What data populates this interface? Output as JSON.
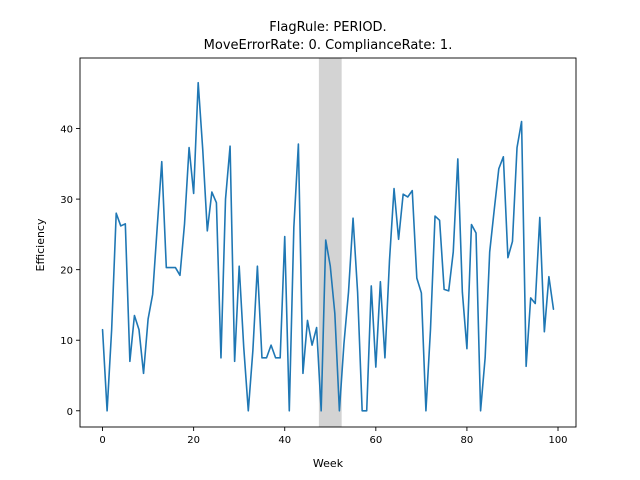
{
  "chart_data": {
    "type": "line",
    "title_lines": [
      "FlagRule: PERIOD.",
      "MoveErrorRate: 0. ComplianceRate: 1."
    ],
    "xlabel": "Week",
    "ylabel": "Efficiency",
    "xlim": [
      -4.95,
      103.95
    ],
    "ylim": [
      -2.3,
      50.0
    ],
    "xticks": [
      0,
      20,
      40,
      60,
      80,
      100
    ],
    "yticks": [
      0,
      10,
      20,
      30,
      40
    ],
    "shaded_region": {
      "x_start": 47.5,
      "x_end": 52.5,
      "color": "#d3d3d3"
    },
    "line_color": "#1f77b4",
    "series": [
      {
        "x": [
          0,
          1,
          2,
          3,
          4,
          5,
          6,
          7,
          8,
          9,
          10,
          11,
          12,
          13,
          14,
          15,
          16,
          17,
          18,
          19,
          20,
          21,
          22,
          23,
          24,
          25,
          26,
          27,
          28,
          29,
          30,
          31,
          32,
          33,
          34,
          35,
          36,
          37,
          38,
          39,
          40,
          41,
          42,
          43,
          44,
          45,
          46,
          47,
          48,
          49,
          50,
          51,
          52,
          53,
          54,
          55,
          56,
          57,
          58,
          59,
          60,
          61,
          62,
          63,
          64,
          65,
          66,
          67,
          68,
          69,
          70,
          71,
          72,
          73,
          74,
          75,
          76,
          77,
          78,
          79,
          80,
          81,
          82,
          83,
          84,
          85,
          86,
          87,
          88,
          89,
          90,
          91,
          92,
          93,
          94,
          95,
          96,
          97,
          98,
          99
        ],
        "values": [
          11.5,
          0.0,
          11.5,
          28.0,
          26.2,
          26.5,
          7.0,
          13.5,
          11.5,
          5.3,
          13.0,
          16.5,
          26.0,
          35.3,
          20.3,
          20.3,
          20.3,
          19.2,
          26.5,
          37.3,
          30.8,
          46.5,
          37.0,
          25.5,
          31.0,
          29.5,
          7.5,
          30.0,
          37.5,
          7.0,
          20.5,
          9.0,
          0.0,
          8.5,
          20.5,
          7.5,
          7.5,
          9.3,
          7.5,
          7.5,
          24.7,
          0.0,
          26.0,
          37.8,
          5.3,
          12.8,
          9.3,
          11.8,
          0.0,
          24.2,
          20.5,
          13.8,
          0.0,
          9.5,
          16.8,
          27.3,
          16.8,
          0.0,
          0.0,
          17.7,
          6.2,
          18.3,
          7.5,
          21.3,
          31.5,
          24.3,
          30.7,
          30.3,
          31.2,
          18.8,
          16.7,
          0.0,
          11.5,
          27.6,
          27.0,
          17.2,
          17.0,
          22.5,
          35.7,
          16.8,
          8.8,
          26.4,
          25.2,
          0.0,
          7.5,
          22.5,
          28.5,
          34.3,
          36.0,
          21.7,
          24.0,
          37.3,
          41.0,
          6.3,
          16.0,
          15.2,
          27.4,
          11.2,
          19.0,
          14.4
        ]
      }
    ]
  }
}
